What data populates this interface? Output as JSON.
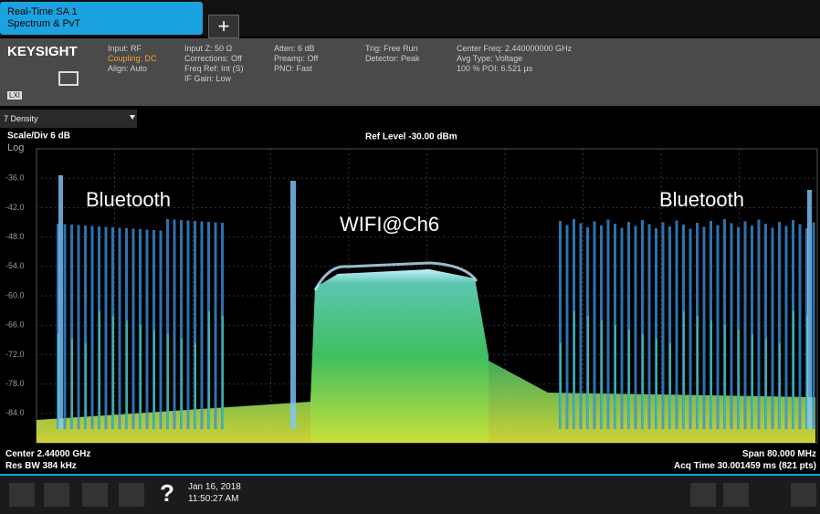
{
  "tab": {
    "title": "Real-Time SA 1",
    "subtitle": "Spectrum & PvT",
    "add": "+"
  },
  "header": {
    "brand": "KEYSIGHT",
    "badge": "LXI",
    "columns": [
      [
        "Input: RF",
        "Coupling: DC",
        "Align: Auto"
      ],
      [
        "Input Z: 50 Ω",
        "Corrections: Off",
        "Freq Ref: Int (S)",
        "IF Gain: Low"
      ],
      [
        "Atten: 6 dB",
        "Preamp: Off",
        "PNO: Fast"
      ],
      [
        "Trig: Free Run",
        "Detector: Peak"
      ],
      [
        "Center Freq: 2.440000000 GHz",
        "Avg Type: Voltage",
        "100 % POI: 6.521 µs"
      ]
    ]
  },
  "dropdown": "7 Density",
  "plot": {
    "scale": "Scale/Div 6 dB",
    "log": "Log",
    "ref_level": "Ref Level -30.00 dBm",
    "y_labels": [
      "-36.0",
      "-42.0",
      "-48.0",
      "-54.0",
      "-60.0",
      "-66.0",
      "-72.0",
      "-78.0",
      "-84.0"
    ],
    "annotations": [
      "Bluetooth",
      "WIFI@Ch6",
      "Bluetooth"
    ]
  },
  "footer": {
    "center": "Center 2.44000 GHz",
    "res_bw": "Res BW 384 kHz",
    "span": "Span 80.000 MHz",
    "acq_time": "Acq Time 30.001459 ms (821 pts)"
  },
  "taskbar": {
    "help": "?",
    "date": "Jan 16, 2018",
    "time": "11:50:27 AM"
  }
}
